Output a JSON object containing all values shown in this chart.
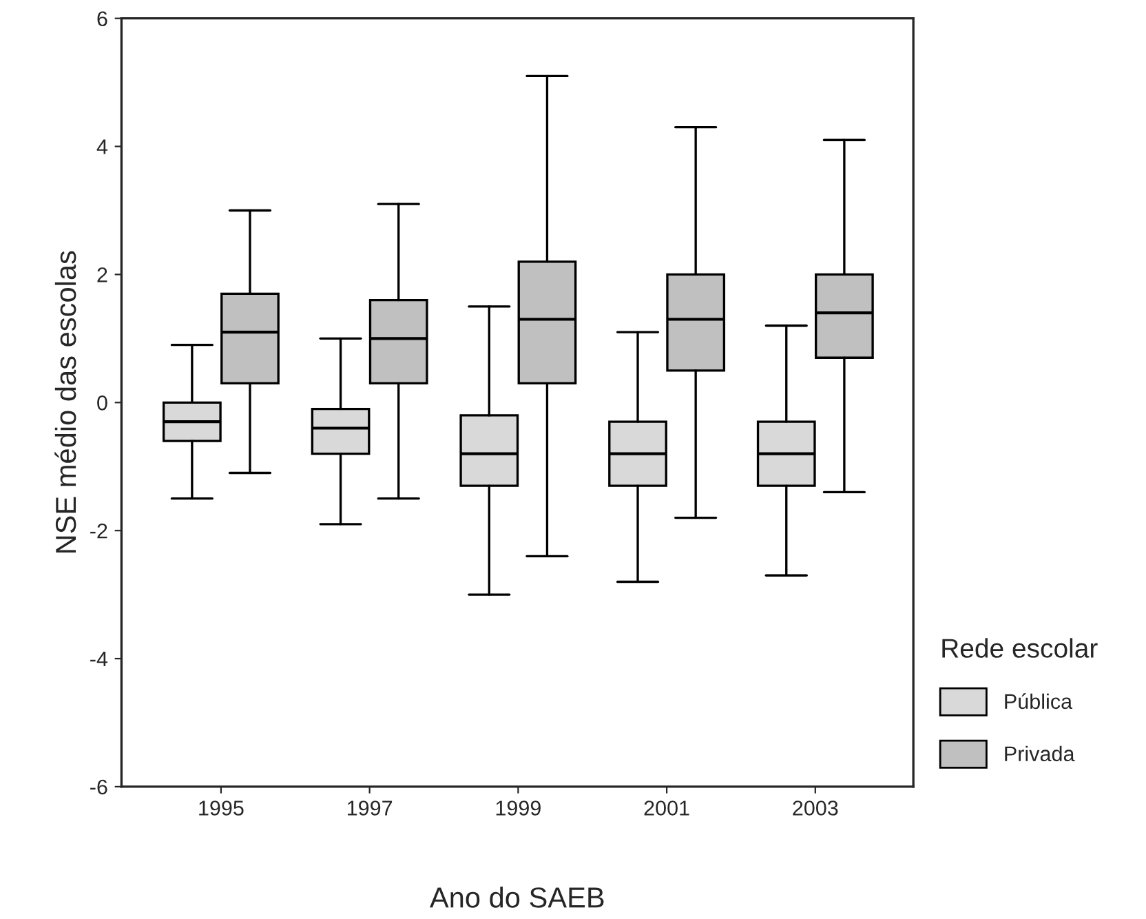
{
  "chart_data": {
    "type": "box",
    "xlabel": "Ano do SAEB",
    "ylabel": "NSE médio das escolas",
    "legend_title": "Rede escolar",
    "legend": "right",
    "categories": [
      "1995",
      "1997",
      "1999",
      "2001",
      "2003"
    ],
    "ylim": [
      -6,
      6
    ],
    "yticks": [
      -6,
      -4,
      -2,
      0,
      2,
      4,
      6
    ],
    "grid": false,
    "series": [
      {
        "name": "Pública",
        "color": "#d9d9d9",
        "boxes": [
          {
            "low": -1.5,
            "q1": -0.6,
            "median": -0.3,
            "q3": 0.0,
            "high": 0.9
          },
          {
            "low": -1.9,
            "q1": -0.8,
            "median": -0.4,
            "q3": -0.1,
            "high": 1.0
          },
          {
            "low": -3.0,
            "q1": -1.3,
            "median": -0.8,
            "q3": -0.2,
            "high": 1.5
          },
          {
            "low": -2.8,
            "q1": -1.3,
            "median": -0.8,
            "q3": -0.3,
            "high": 1.1
          },
          {
            "low": -2.7,
            "q1": -1.3,
            "median": -0.8,
            "q3": -0.3,
            "high": 1.2
          }
        ]
      },
      {
        "name": "Privada",
        "color": "#c0c0c0",
        "boxes": [
          {
            "low": -1.1,
            "q1": 0.3,
            "median": 1.1,
            "q3": 1.7,
            "high": 3.0
          },
          {
            "low": -1.5,
            "q1": 0.3,
            "median": 1.0,
            "q3": 1.6,
            "high": 3.1
          },
          {
            "low": -2.4,
            "q1": 0.3,
            "median": 1.3,
            "q3": 2.2,
            "high": 5.1
          },
          {
            "low": -1.8,
            "q1": 0.5,
            "median": 1.3,
            "q3": 2.0,
            "high": 4.3
          },
          {
            "low": -1.4,
            "q1": 0.7,
            "median": 1.4,
            "q3": 2.0,
            "high": 4.1
          }
        ]
      }
    ]
  }
}
